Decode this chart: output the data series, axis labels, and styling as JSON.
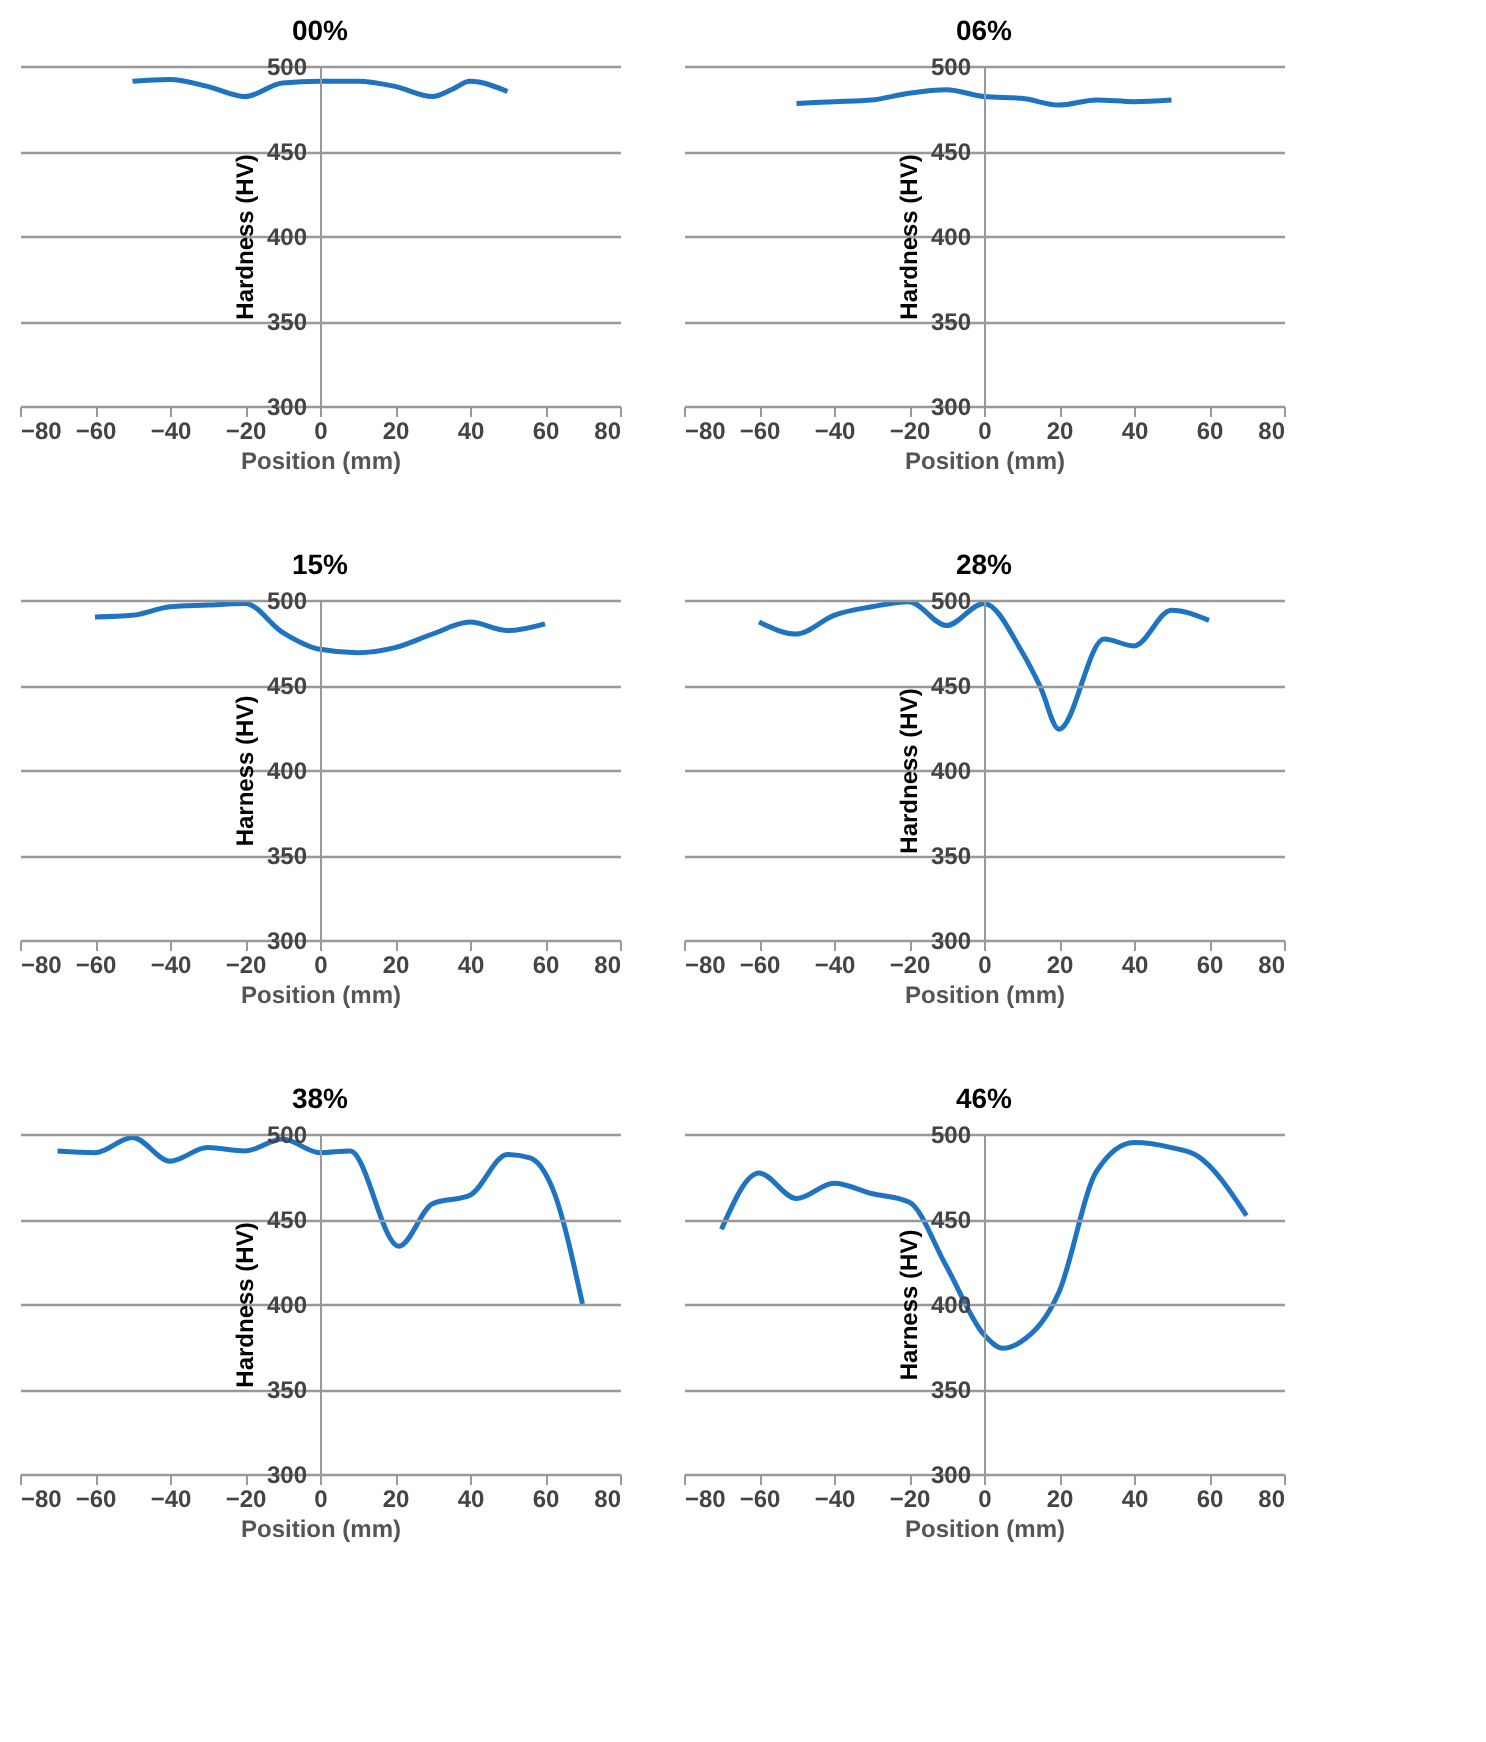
{
  "chart_data": [
    {
      "type": "line",
      "title": "00%",
      "xlabel": "Position (mm)",
      "ylabel": "Hardness (HV)",
      "xlim": [
        -80,
        80
      ],
      "xticks": [
        -80,
        -60,
        -40,
        -20,
        0,
        20,
        40,
        60,
        80
      ],
      "ylim": [
        300,
        500
      ],
      "yticks": [
        300,
        350,
        400,
        450,
        500
      ],
      "grid": "y",
      "x": [
        -50,
        -40,
        -30,
        -20,
        -10,
        0,
        10,
        20,
        30,
        35,
        40,
        50
      ],
      "series": [
        {
          "color": "#1f74c2",
          "values": [
            491,
            492,
            488,
            482,
            490,
            491,
            491,
            488,
            482,
            486,
            491,
            485
          ]
        }
      ]
    },
    {
      "type": "line",
      "title": "06%",
      "xlabel": "Position (mm)",
      "ylabel": "Hardness (HV)",
      "xlim": [
        -80,
        80
      ],
      "xticks": [
        -80,
        -60,
        -40,
        -20,
        0,
        20,
        40,
        60,
        80
      ],
      "ylim": [
        300,
        500
      ],
      "yticks": [
        300,
        350,
        400,
        450,
        500
      ],
      "grid": "y",
      "x": [
        -50,
        -40,
        -30,
        -20,
        -10,
        0,
        10,
        20,
        30,
        40,
        50
      ],
      "series": [
        {
          "color": "#1f74c2",
          "values": [
            478,
            479,
            480,
            484,
            486,
            482,
            481,
            477,
            480,
            479,
            480
          ]
        }
      ]
    },
    {
      "type": "line",
      "title": "15%",
      "xlabel": "Position (mm)",
      "ylabel": "Harness (HV)",
      "xlim": [
        -80,
        80
      ],
      "xticks": [
        -80,
        -60,
        -40,
        -20,
        0,
        20,
        40,
        60,
        80
      ],
      "ylim": [
        300,
        500
      ],
      "yticks": [
        300,
        350,
        400,
        450,
        500
      ],
      "grid": "y",
      "x": [
        -60,
        -50,
        -40,
        -30,
        -20,
        -10,
        0,
        10,
        20,
        30,
        40,
        50,
        60
      ],
      "series": [
        {
          "color": "#1f74c2",
          "values": [
            490,
            491,
            496,
            497,
            498,
            481,
            471,
            469,
            472,
            480,
            487,
            482,
            486
          ]
        }
      ]
    },
    {
      "type": "line",
      "title": "28%",
      "xlabel": "Position (mm)",
      "ylabel": "Hardness (HV)",
      "xlim": [
        -80,
        80
      ],
      "xticks": [
        -80,
        -60,
        -40,
        -20,
        0,
        20,
        40,
        60,
        80
      ],
      "ylim": [
        300,
        500
      ],
      "yticks": [
        300,
        350,
        400,
        450,
        500
      ],
      "grid": "y",
      "x": [
        -60,
        -50,
        -40,
        -30,
        -20,
        -10,
        0,
        10,
        15,
        20,
        32,
        40,
        50,
        60
      ],
      "series": [
        {
          "color": "#1f74c2",
          "values": [
            487,
            480,
            491,
            496,
            499,
            485,
            498,
            470,
            449,
            424,
            477,
            473,
            494,
            488
          ]
        }
      ]
    },
    {
      "type": "line",
      "title": "38%",
      "xlabel": "Position (mm)",
      "ylabel": "Hardness (HV)",
      "xlim": [
        -80,
        80
      ],
      "xticks": [
        -80,
        -60,
        -40,
        -20,
        0,
        20,
        40,
        60,
        80
      ],
      "ylim": [
        300,
        500
      ],
      "yticks": [
        300,
        350,
        400,
        450,
        500
      ],
      "grid": "y",
      "x": [
        -70,
        -60,
        -50,
        -40,
        -30,
        -20,
        -10,
        0,
        8,
        21,
        30,
        40,
        50,
        56,
        62,
        70
      ],
      "series": [
        {
          "color": "#1f74c2",
          "values": [
            490,
            489,
            498,
            484,
            492,
            490,
            497,
            489,
            490,
            434,
            459,
            464,
            488,
            486,
            468,
            400
          ]
        }
      ]
    },
    {
      "type": "line",
      "title": "46%",
      "xlabel": "Position (mm)",
      "ylabel": "Harness (HV)",
      "xlim": [
        -80,
        80
      ],
      "xticks": [
        -80,
        -60,
        -40,
        -20,
        0,
        20,
        40,
        60,
        80
      ],
      "ylim": [
        300,
        500
      ],
      "yticks": [
        300,
        350,
        400,
        450,
        500
      ],
      "grid": "y",
      "x": [
        -70,
        -60,
        -50,
        -40,
        -30,
        -20,
        -10,
        0,
        5,
        10,
        20,
        30,
        40,
        50,
        57,
        70
      ],
      "series": [
        {
          "color": "#1f74c2",
          "values": [
            444,
            477,
            462,
            471,
            465,
            460,
            422,
            382,
            374,
            378,
            407,
            478,
            495,
            492,
            487,
            452
          ]
        }
      ]
    }
  ]
}
